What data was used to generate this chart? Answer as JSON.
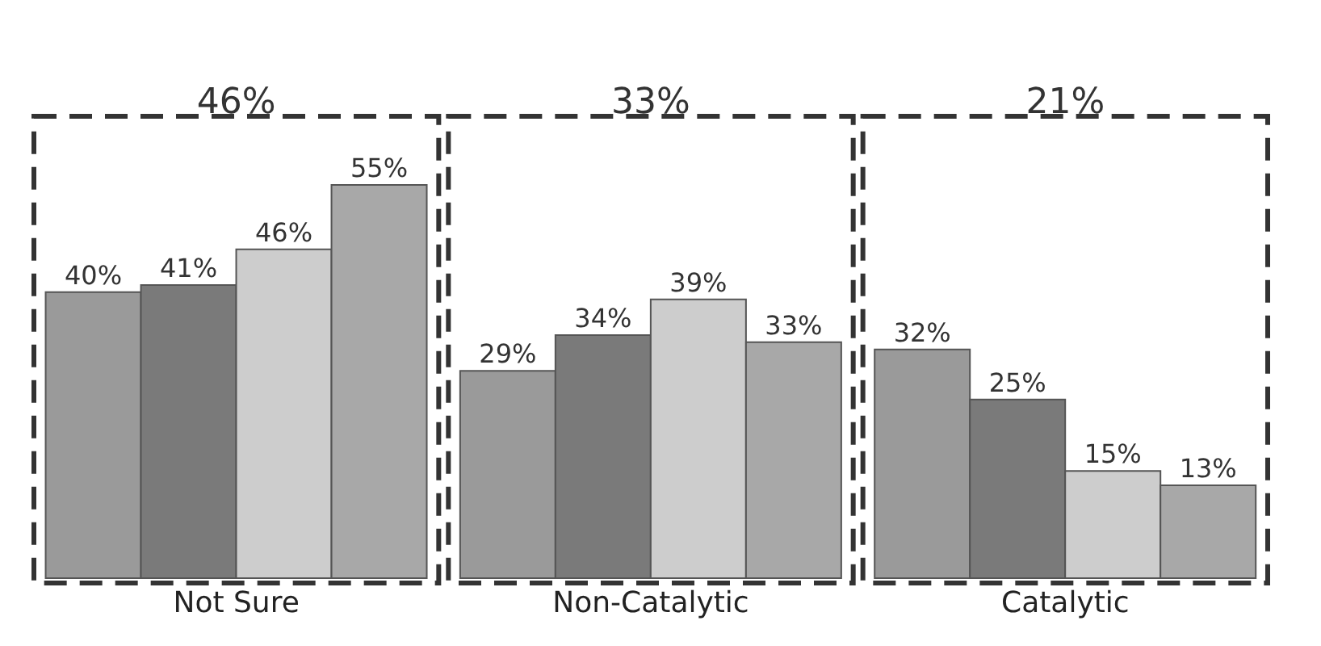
{
  "chart_data": {
    "type": "bar",
    "categories": [
      "Not Sure",
      "Non-Catalytic",
      "Catalytic"
    ],
    "series": [
      {
        "color": "#9a9a9a",
        "values": [
          40,
          29,
          32
        ],
        "value_labels": [
          "40%",
          "29%",
          "32%"
        ]
      },
      {
        "color": "#7a7a7a",
        "values": [
          41,
          34,
          25
        ],
        "value_labels": [
          "41%",
          "34%",
          "25%"
        ]
      },
      {
        "color": "#cdcdcd",
        "values": [
          46,
          39,
          15
        ],
        "value_labels": [
          "46%",
          "39%",
          "15%"
        ]
      },
      {
        "color": "#a8a8a8",
        "values": [
          55,
          33,
          13
        ],
        "value_labels": [
          "55%",
          "33%",
          "13%"
        ]
      }
    ],
    "annotations": [
      "46%",
      "33%",
      "21%"
    ],
    "grid": false,
    "legend": false
  }
}
